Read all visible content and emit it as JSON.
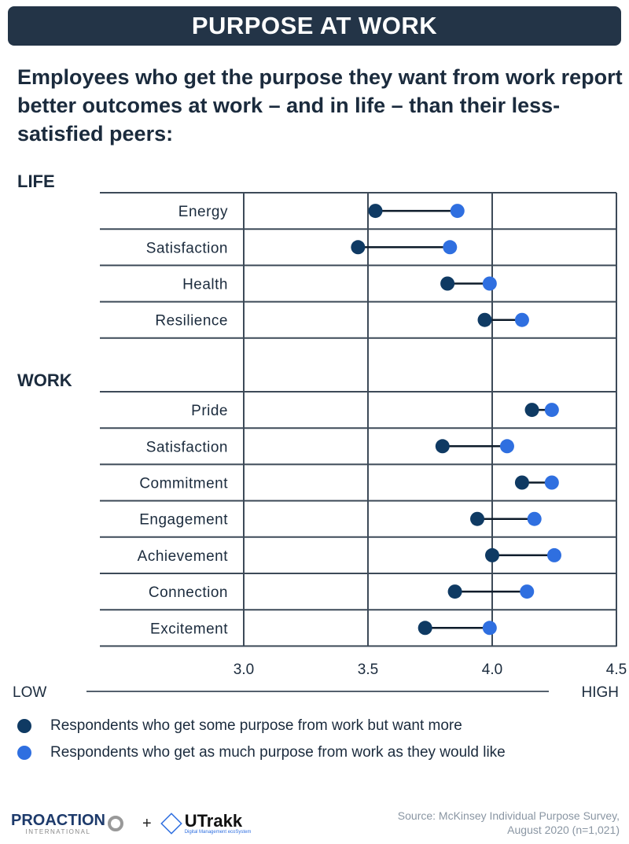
{
  "banner_title": "PURPOSE AT WORK",
  "subtitle": "Employees who get the purpose they want from work report better outcomes at work – and in life – than their less-satisfied peers:",
  "colors": {
    "dark": "#0f3a63",
    "light": "#2f6fe0",
    "grid": "#3d4a58",
    "banner": "#233447"
  },
  "chart_data": {
    "type": "dumbbell",
    "xlim": [
      3.0,
      4.5
    ],
    "xticks": [
      "3.0",
      "3.5",
      "4.0",
      "4.5"
    ],
    "x_low_label": "LOW",
    "x_high_label": "HIGH",
    "groups": [
      {
        "name": "LIFE",
        "rows": [
          {
            "label": "Energy",
            "some": 3.53,
            "full": 3.86
          },
          {
            "label": "Satisfaction",
            "some": 3.46,
            "full": 3.83
          },
          {
            "label": "Health",
            "some": 3.82,
            "full": 3.99
          },
          {
            "label": "Resilience",
            "some": 3.97,
            "full": 4.12
          }
        ]
      },
      {
        "name": "WORK",
        "rows": [
          {
            "label": "Pride",
            "some": 4.16,
            "full": 4.24
          },
          {
            "label": "Satisfaction",
            "some": 3.8,
            "full": 4.06
          },
          {
            "label": "Commitment",
            "some": 4.12,
            "full": 4.24
          },
          {
            "label": "Engagement",
            "some": 3.94,
            "full": 4.17
          },
          {
            "label": "Achievement",
            "some": 4.0,
            "full": 4.25
          },
          {
            "label": "Connection",
            "some": 3.85,
            "full": 4.14
          },
          {
            "label": "Excitement",
            "some": 3.73,
            "full": 3.99
          }
        ]
      }
    ],
    "legend": [
      {
        "key": "some",
        "label": "Respondents who get some purpose from work but want more"
      },
      {
        "key": "full",
        "label": "Respondents who get as much purpose from work as they would like"
      }
    ]
  },
  "footer": {
    "logo1": "PROACTION",
    "logo1_sub": "INTERNATIONAL",
    "plus": "+",
    "logo2": "UTrakk",
    "logo2_sub": "Digital Management ecoSystem",
    "source_line1": "Source: McKinsey Individual Purpose Survey,",
    "source_line2": "August 2020 (n=1,021)"
  }
}
